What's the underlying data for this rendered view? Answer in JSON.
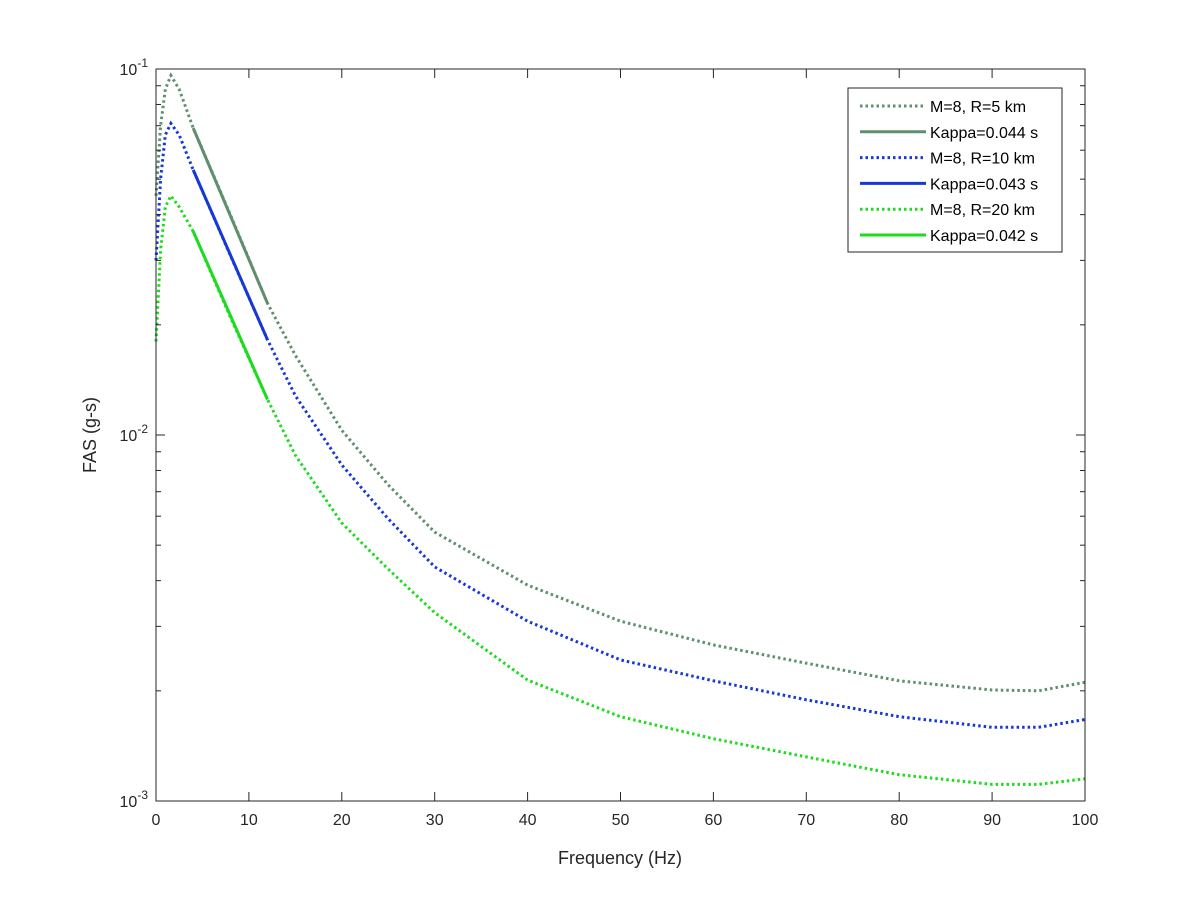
{
  "chart_data": {
    "type": "line",
    "title": "",
    "xlabel": "Frequency (Hz)",
    "ylabel": "FAS (g-s)",
    "xlim": [
      0,
      100
    ],
    "ylim": [
      0.001,
      0.1
    ],
    "yscale": "log",
    "grid": false,
    "legend_placement": "top-right",
    "x_ticks": [
      "0",
      "10",
      "20",
      "30",
      "40",
      "50",
      "60",
      "70",
      "80",
      "90",
      "100"
    ],
    "y_ticks": [
      {
        "base": "10",
        "exp": "-1"
      },
      {
        "base": "10",
        "exp": "-2"
      },
      {
        "base": "10",
        "exp": "-3"
      }
    ],
    "series": [
      {
        "name": "M=8, R=5 km",
        "style": "dotted",
        "color": "#5f8f6f",
        "x": [
          0,
          0.5,
          1,
          1.6,
          2.5,
          4,
          8,
          12,
          15,
          20,
          25,
          30,
          40,
          50,
          60,
          70,
          80,
          90,
          95,
          100
        ],
        "y": [
          0.045,
          0.07,
          0.088,
          0.096,
          0.088,
          0.069,
          0.04,
          0.0229,
          0.0165,
          0.0103,
          0.0073,
          0.00543,
          0.00389,
          0.0031,
          0.00267,
          0.00238,
          0.00213,
          0.00201,
          0.002,
          0.00211
        ]
      },
      {
        "name": "Kappa=0.044 s",
        "style": "solid",
        "color": "#5f8f6f",
        "x": [
          4,
          12
        ],
        "y": [
          0.069,
          0.0229
        ]
      },
      {
        "name": "M=8, R=10 km",
        "style": "dotted",
        "color": "#1638d8",
        "x": [
          0,
          0.5,
          1,
          1.6,
          2.5,
          4,
          8,
          12,
          15,
          20,
          25,
          30,
          40,
          50,
          60,
          70,
          80,
          90,
          95,
          100
        ],
        "y": [
          0.03,
          0.05,
          0.066,
          0.071,
          0.066,
          0.053,
          0.031,
          0.0182,
          0.0128,
          0.00828,
          0.0059,
          0.00436,
          0.0031,
          0.00243,
          0.00213,
          0.00189,
          0.0017,
          0.00159,
          0.00159,
          0.00167
        ]
      },
      {
        "name": "Kappa=0.043 s",
        "style": "solid",
        "color": "#1638d8",
        "x": [
          4,
          12
        ],
        "y": [
          0.053,
          0.0182
        ]
      },
      {
        "name": "M=8, R=20 km",
        "style": "dotted",
        "color": "#1ddc1d",
        "x": [
          0,
          0.5,
          1,
          1.6,
          2.5,
          4,
          8,
          12,
          15,
          20,
          25,
          30,
          40,
          50,
          60,
          70,
          80,
          90,
          95,
          100
        ],
        "y": [
          0.018,
          0.032,
          0.042,
          0.045,
          0.042,
          0.036,
          0.021,
          0.0125,
          0.0088,
          0.00575,
          0.0043,
          0.00327,
          0.00214,
          0.0017,
          0.00148,
          0.00132,
          0.00118,
          0.00111,
          0.00111,
          0.00115
        ]
      },
      {
        "name": "Kappa=0.042 s",
        "style": "solid",
        "color": "#1ddc1d",
        "x": [
          4,
          12
        ],
        "y": [
          0.036,
          0.0125
        ]
      }
    ]
  }
}
